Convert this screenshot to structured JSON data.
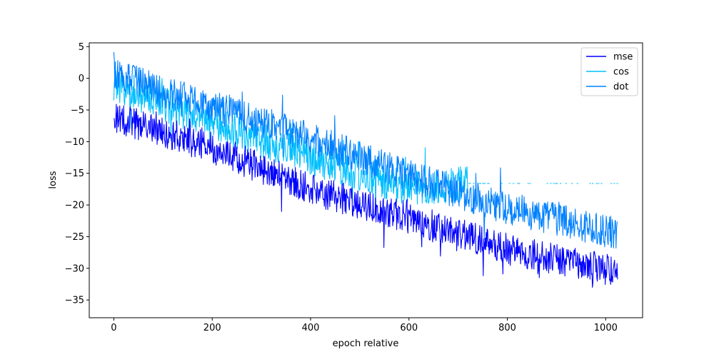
{
  "chart_data": {
    "type": "line",
    "title": "",
    "xlabel": "epoch relative",
    "ylabel": "loss",
    "xlim": [
      -50,
      1075
    ],
    "ylim": [
      -37.8,
      5.6
    ],
    "xticks": [
      0,
      200,
      400,
      600,
      800,
      1000
    ],
    "yticks": [
      5,
      0,
      -5,
      -10,
      -15,
      -20,
      -25,
      -30,
      -35
    ],
    "grid": false,
    "legend_position": "top-right",
    "x_range": [
      0,
      1024
    ],
    "series": [
      {
        "name": "mse",
        "color": "#0000ff",
        "trend": [
          [
            0,
            -6
          ],
          [
            200,
            -11
          ],
          [
            400,
            -17.5
          ],
          [
            600,
            -22
          ],
          [
            800,
            -27
          ],
          [
            1024,
            -30.5
          ]
        ],
        "noise": 2.5
      },
      {
        "name": "cos",
        "color": "#00bfff",
        "trend": [
          [
            0,
            -1
          ],
          [
            200,
            -7
          ],
          [
            400,
            -12.5
          ],
          [
            600,
            -17.5
          ],
          [
            720,
            -16.6
          ],
          [
            1024,
            -16.6
          ]
        ],
        "noise": 2.8,
        "sparse_after": 720,
        "sparse_value": -16.6
      },
      {
        "name": "dot",
        "color": "#0080ff",
        "trend": [
          [
            0,
            0.5
          ],
          [
            200,
            -4.5
          ],
          [
            400,
            -9.5
          ],
          [
            600,
            -15.5
          ],
          [
            800,
            -20.5
          ],
          [
            1024,
            -24.5
          ]
        ],
        "noise": 2.6
      }
    ]
  }
}
